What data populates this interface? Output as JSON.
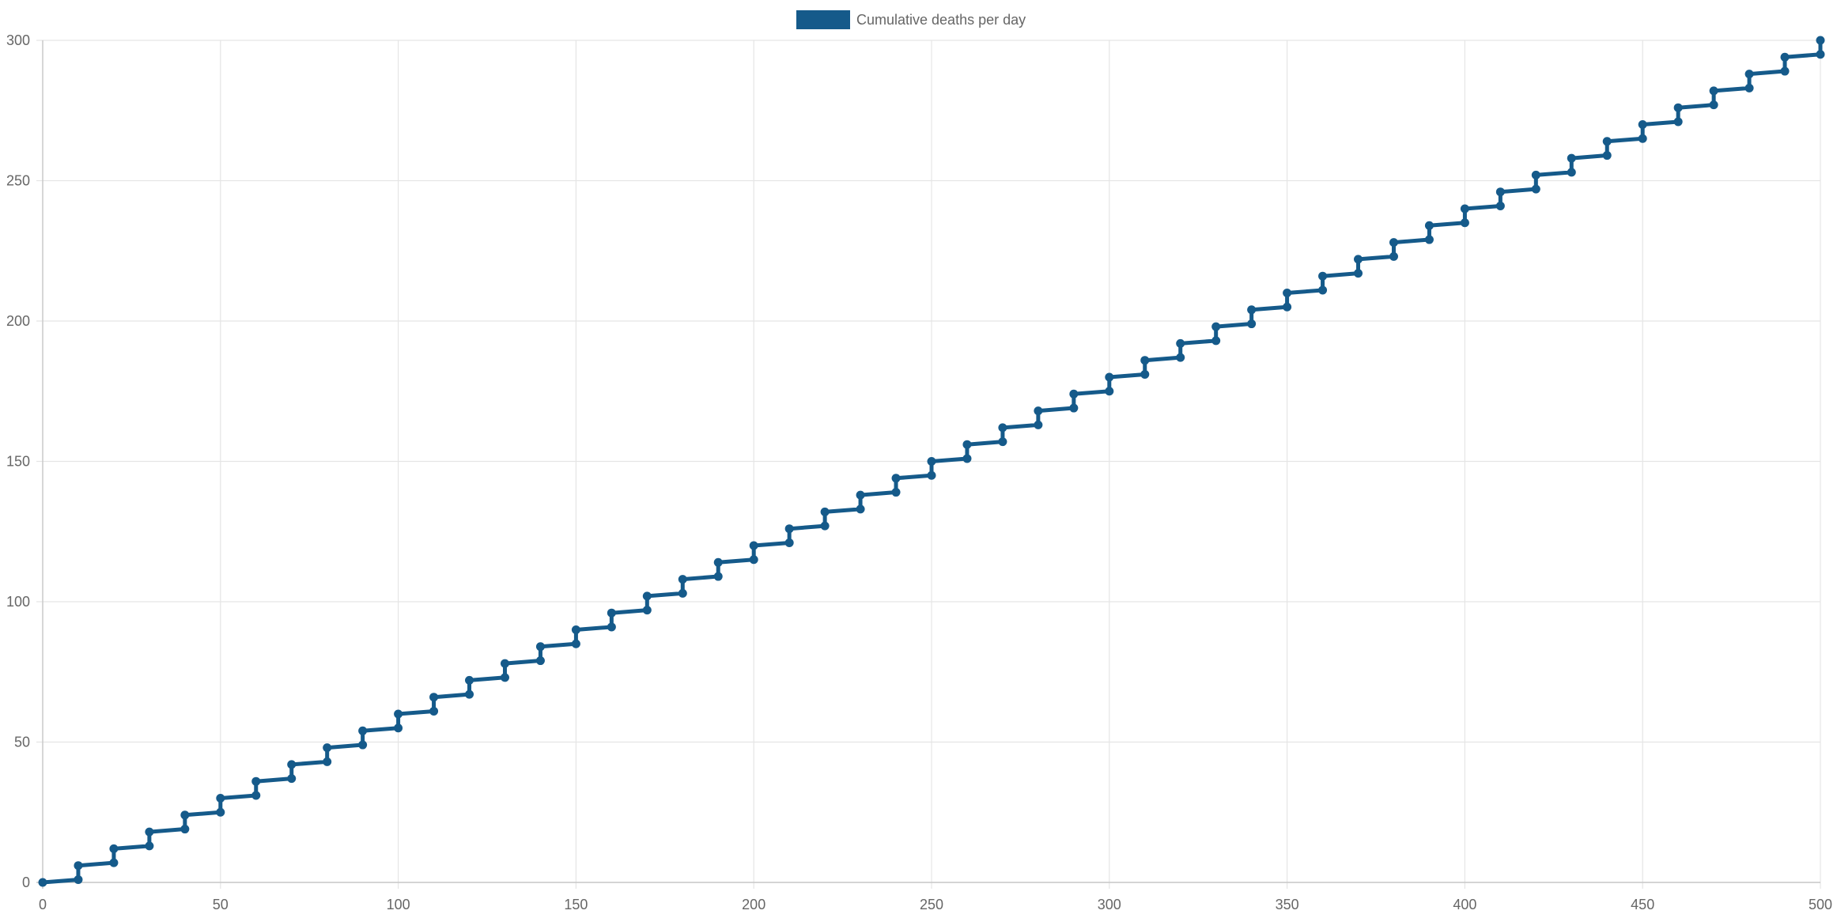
{
  "chart_data": {
    "type": "line",
    "title": "",
    "xlabel": "",
    "ylabel": "",
    "xlim": [
      0,
      500
    ],
    "ylim": [
      0,
      300
    ],
    "x_ticks": [
      0,
      50,
      100,
      150,
      200,
      250,
      300,
      350,
      400,
      450,
      500
    ],
    "y_ticks": [
      0,
      50,
      100,
      150,
      200,
      250,
      300
    ],
    "grid": true,
    "legend_position": "top-center",
    "series": [
      {
        "name": "Cumulative deaths per day",
        "color": "#155a8a",
        "x": [
          0,
          10,
          10,
          20,
          20,
          30,
          30,
          40,
          40,
          50,
          50,
          60,
          60,
          70,
          70,
          80,
          80,
          90,
          90,
          100,
          100,
          110,
          110,
          120,
          120,
          130,
          130,
          140,
          140,
          150,
          150,
          160,
          160,
          170,
          170,
          180,
          180,
          190,
          190,
          200,
          200,
          210,
          210,
          220,
          220,
          230,
          230,
          240,
          240,
          250,
          250,
          260,
          260,
          270,
          270,
          280,
          280,
          290,
          290,
          300,
          300,
          310,
          310,
          320,
          320,
          330,
          330,
          340,
          340,
          350,
          350,
          360,
          360,
          370,
          370,
          380,
          380,
          390,
          390,
          400,
          400,
          410,
          410,
          420,
          420,
          430,
          430,
          440,
          440,
          450,
          450,
          460,
          460,
          470,
          470,
          480,
          480,
          490,
          490,
          500,
          500
        ],
        "values": [
          0,
          1,
          6,
          7,
          12,
          13,
          18,
          19,
          24,
          25,
          30,
          31,
          36,
          37,
          42,
          43,
          48,
          49,
          54,
          55,
          60,
          61,
          66,
          67,
          72,
          73,
          78,
          79,
          84,
          85,
          90,
          91,
          96,
          97,
          102,
          103,
          108,
          109,
          114,
          115,
          120,
          121,
          126,
          127,
          132,
          133,
          138,
          139,
          144,
          145,
          150,
          151,
          156,
          157,
          162,
          163,
          168,
          169,
          174,
          175,
          180,
          181,
          186,
          187,
          192,
          193,
          198,
          199,
          204,
          205,
          210,
          211,
          216,
          217,
          222,
          223,
          228,
          229,
          234,
          235,
          240,
          241,
          246,
          247,
          252,
          253,
          258,
          259,
          264,
          265,
          270,
          271,
          276,
          277,
          282,
          283,
          288,
          289,
          294,
          295,
          300
        ]
      }
    ]
  }
}
